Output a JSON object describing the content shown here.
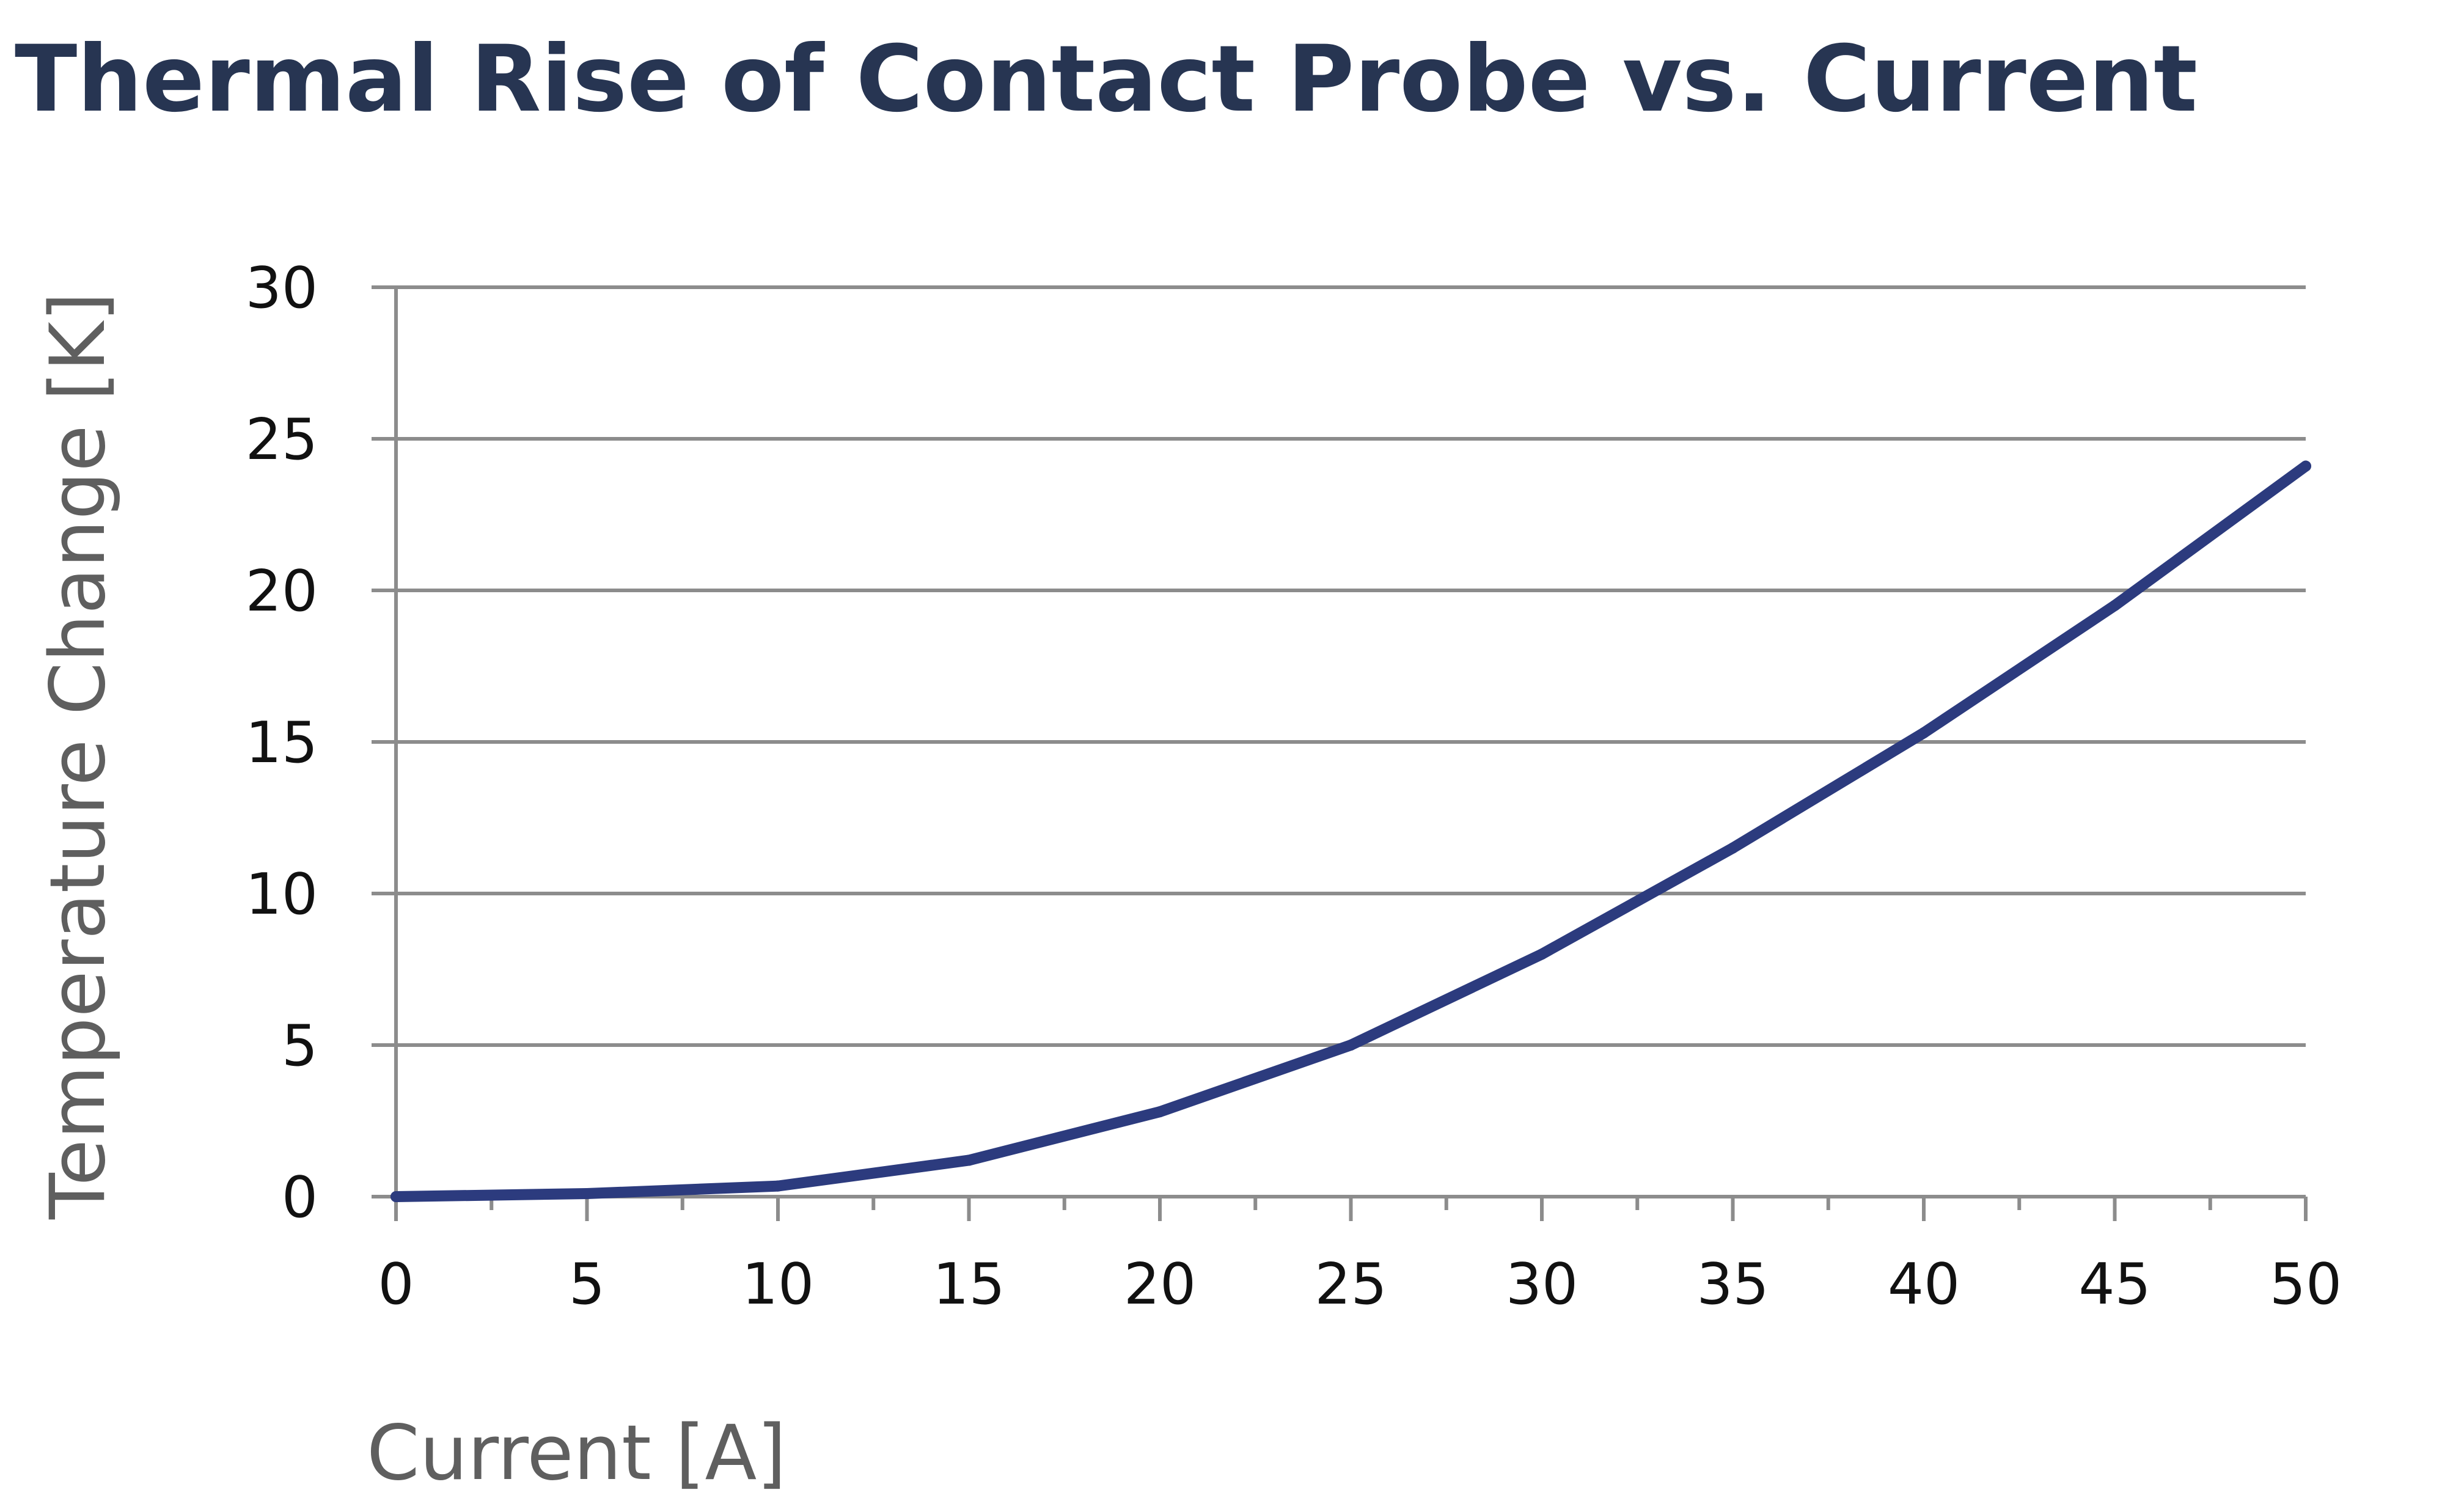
{
  "chart_data": {
    "type": "line",
    "title": "Thermal Rise of Contact Probe vs. Current",
    "xlabel": "Current [A]",
    "ylabel": "Temperature Change [K]",
    "x": [
      0,
      5,
      10,
      15,
      20,
      25,
      30,
      35,
      40,
      45,
      50
    ],
    "series": [
      {
        "values": [
          0,
          0.1,
          0.35,
          1.2,
          2.8,
          5.0,
          8.0,
          11.5,
          15.3,
          19.5,
          24.1
        ]
      }
    ],
    "xlim": [
      0,
      50
    ],
    "ylim": [
      0,
      30
    ],
    "xticks": [
      "0",
      "5",
      "10",
      "15",
      "20",
      "25",
      "30",
      "35",
      "40",
      "45",
      "50"
    ],
    "yticks": [
      "0",
      "5",
      "10",
      "15",
      "20",
      "25",
      "30"
    ],
    "grid": "horizontal",
    "legend": "none",
    "colors": {
      "line": "#2c3b7e",
      "grid": "#8c8c8c",
      "title": "#273552",
      "axis_label": "#5f5f5f"
    }
  }
}
